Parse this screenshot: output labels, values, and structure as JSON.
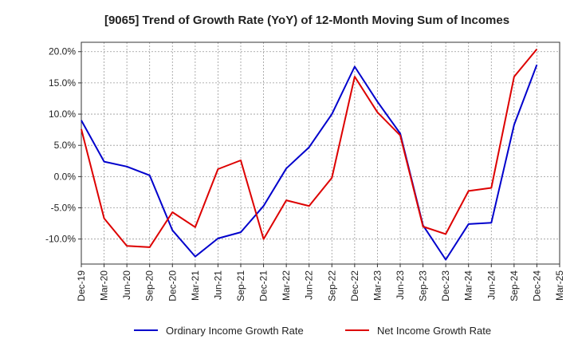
{
  "chart_data": {
    "type": "line",
    "title": "[9065]  Trend of Growth Rate (YoY) of 12-Month Moving Sum of Incomes",
    "xlabel": "",
    "ylabel": "",
    "categories": [
      "Dec-19",
      "Mar-20",
      "Jun-20",
      "Sep-20",
      "Dec-20",
      "Mar-21",
      "Jun-21",
      "Sep-21",
      "Dec-21",
      "Mar-22",
      "Jun-22",
      "Sep-22",
      "Dec-22",
      "Mar-23",
      "Jun-23",
      "Sep-23",
      "Dec-23",
      "Mar-24",
      "Jun-24",
      "Sep-24",
      "Dec-24",
      "Mar-25"
    ],
    "ylim": [
      -14.0,
      21.5
    ],
    "yticks": [
      -10.0,
      -5.0,
      0.0,
      5.0,
      10.0,
      15.0,
      20.0
    ],
    "ytick_labels": [
      "-10.0%",
      "-5.0%",
      "0.0%",
      "5.0%",
      "10.0%",
      "15.0%",
      "20.0%"
    ],
    "grid": true,
    "legend_position": "bottom",
    "series": [
      {
        "name": "Ordinary Income Growth Rate",
        "color": "#0000cc",
        "values": [
          9.0,
          2.4,
          1.6,
          0.2,
          -8.6,
          -12.8,
          -9.9,
          -8.9,
          -4.7,
          1.3,
          4.7,
          10.0,
          17.6,
          12.0,
          6.9,
          -7.8,
          -13.3,
          -7.6,
          -7.4,
          8.3,
          17.9,
          null
        ]
      },
      {
        "name": "Net Income Growth Rate",
        "color": "#dd0000",
        "values": [
          7.6,
          -6.7,
          -11.1,
          -11.3,
          -5.7,
          -8.1,
          1.2,
          2.6,
          -10.0,
          -3.8,
          -4.7,
          -0.2,
          16.0,
          10.3,
          6.6,
          -8.0,
          -9.2,
          -2.3,
          -1.8,
          16.0,
          20.4,
          null
        ]
      }
    ]
  }
}
